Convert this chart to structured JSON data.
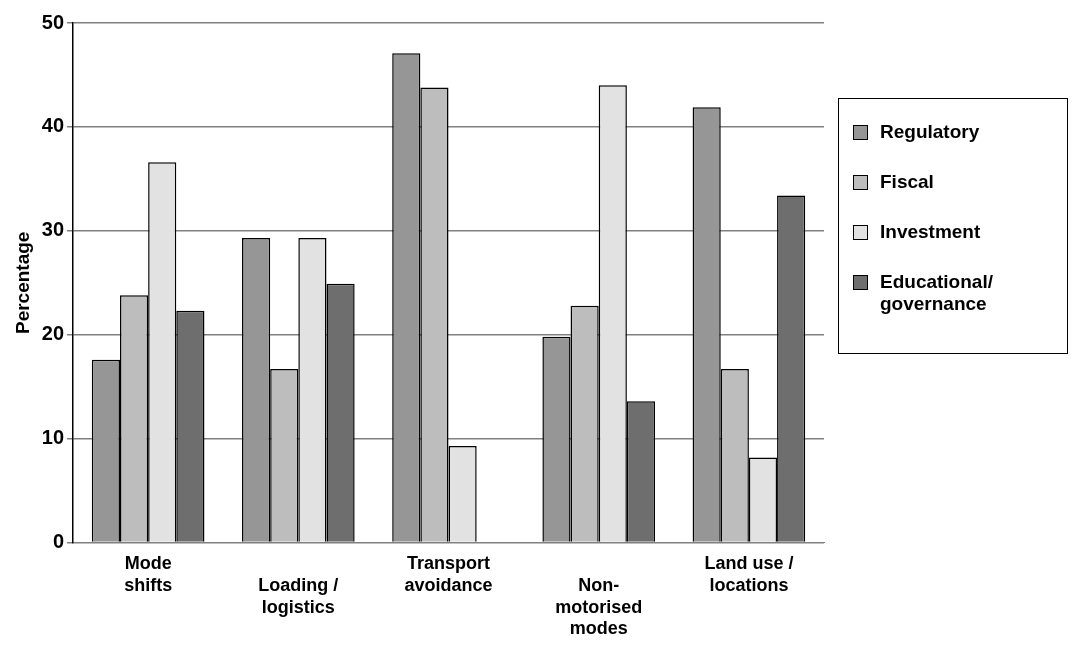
{
  "chart_data": {
    "type": "bar",
    "ylabel": "Percentage",
    "categories": [
      "Mode\nshifts",
      "Loading /\nlogistics",
      "Transport\navoidance",
      "Non-\nmotorised\nmodes",
      "Land use /\nlocations"
    ],
    "series": [
      {
        "name": "Regulatory",
        "color": "#969696",
        "values": [
          17.6,
          29.3,
          47.1,
          19.8,
          41.9
        ]
      },
      {
        "name": "Fiscal",
        "color": "#bdbdbd",
        "values": [
          23.8,
          16.7,
          43.8,
          22.8,
          16.7
        ]
      },
      {
        "name": "Investment",
        "color": "#e2e2e2",
        "values": [
          36.6,
          29.3,
          9.3,
          44.0,
          8.2
        ]
      },
      {
        "name": "Educational/governance",
        "color": "#6e6e6e",
        "values": [
          22.3,
          24.9,
          0,
          13.6,
          33.4
        ]
      }
    ],
    "ylim": [
      0,
      50
    ],
    "yticks": [
      0,
      10,
      20,
      30,
      40,
      50
    ],
    "grid": "y",
    "legend": "right"
  }
}
